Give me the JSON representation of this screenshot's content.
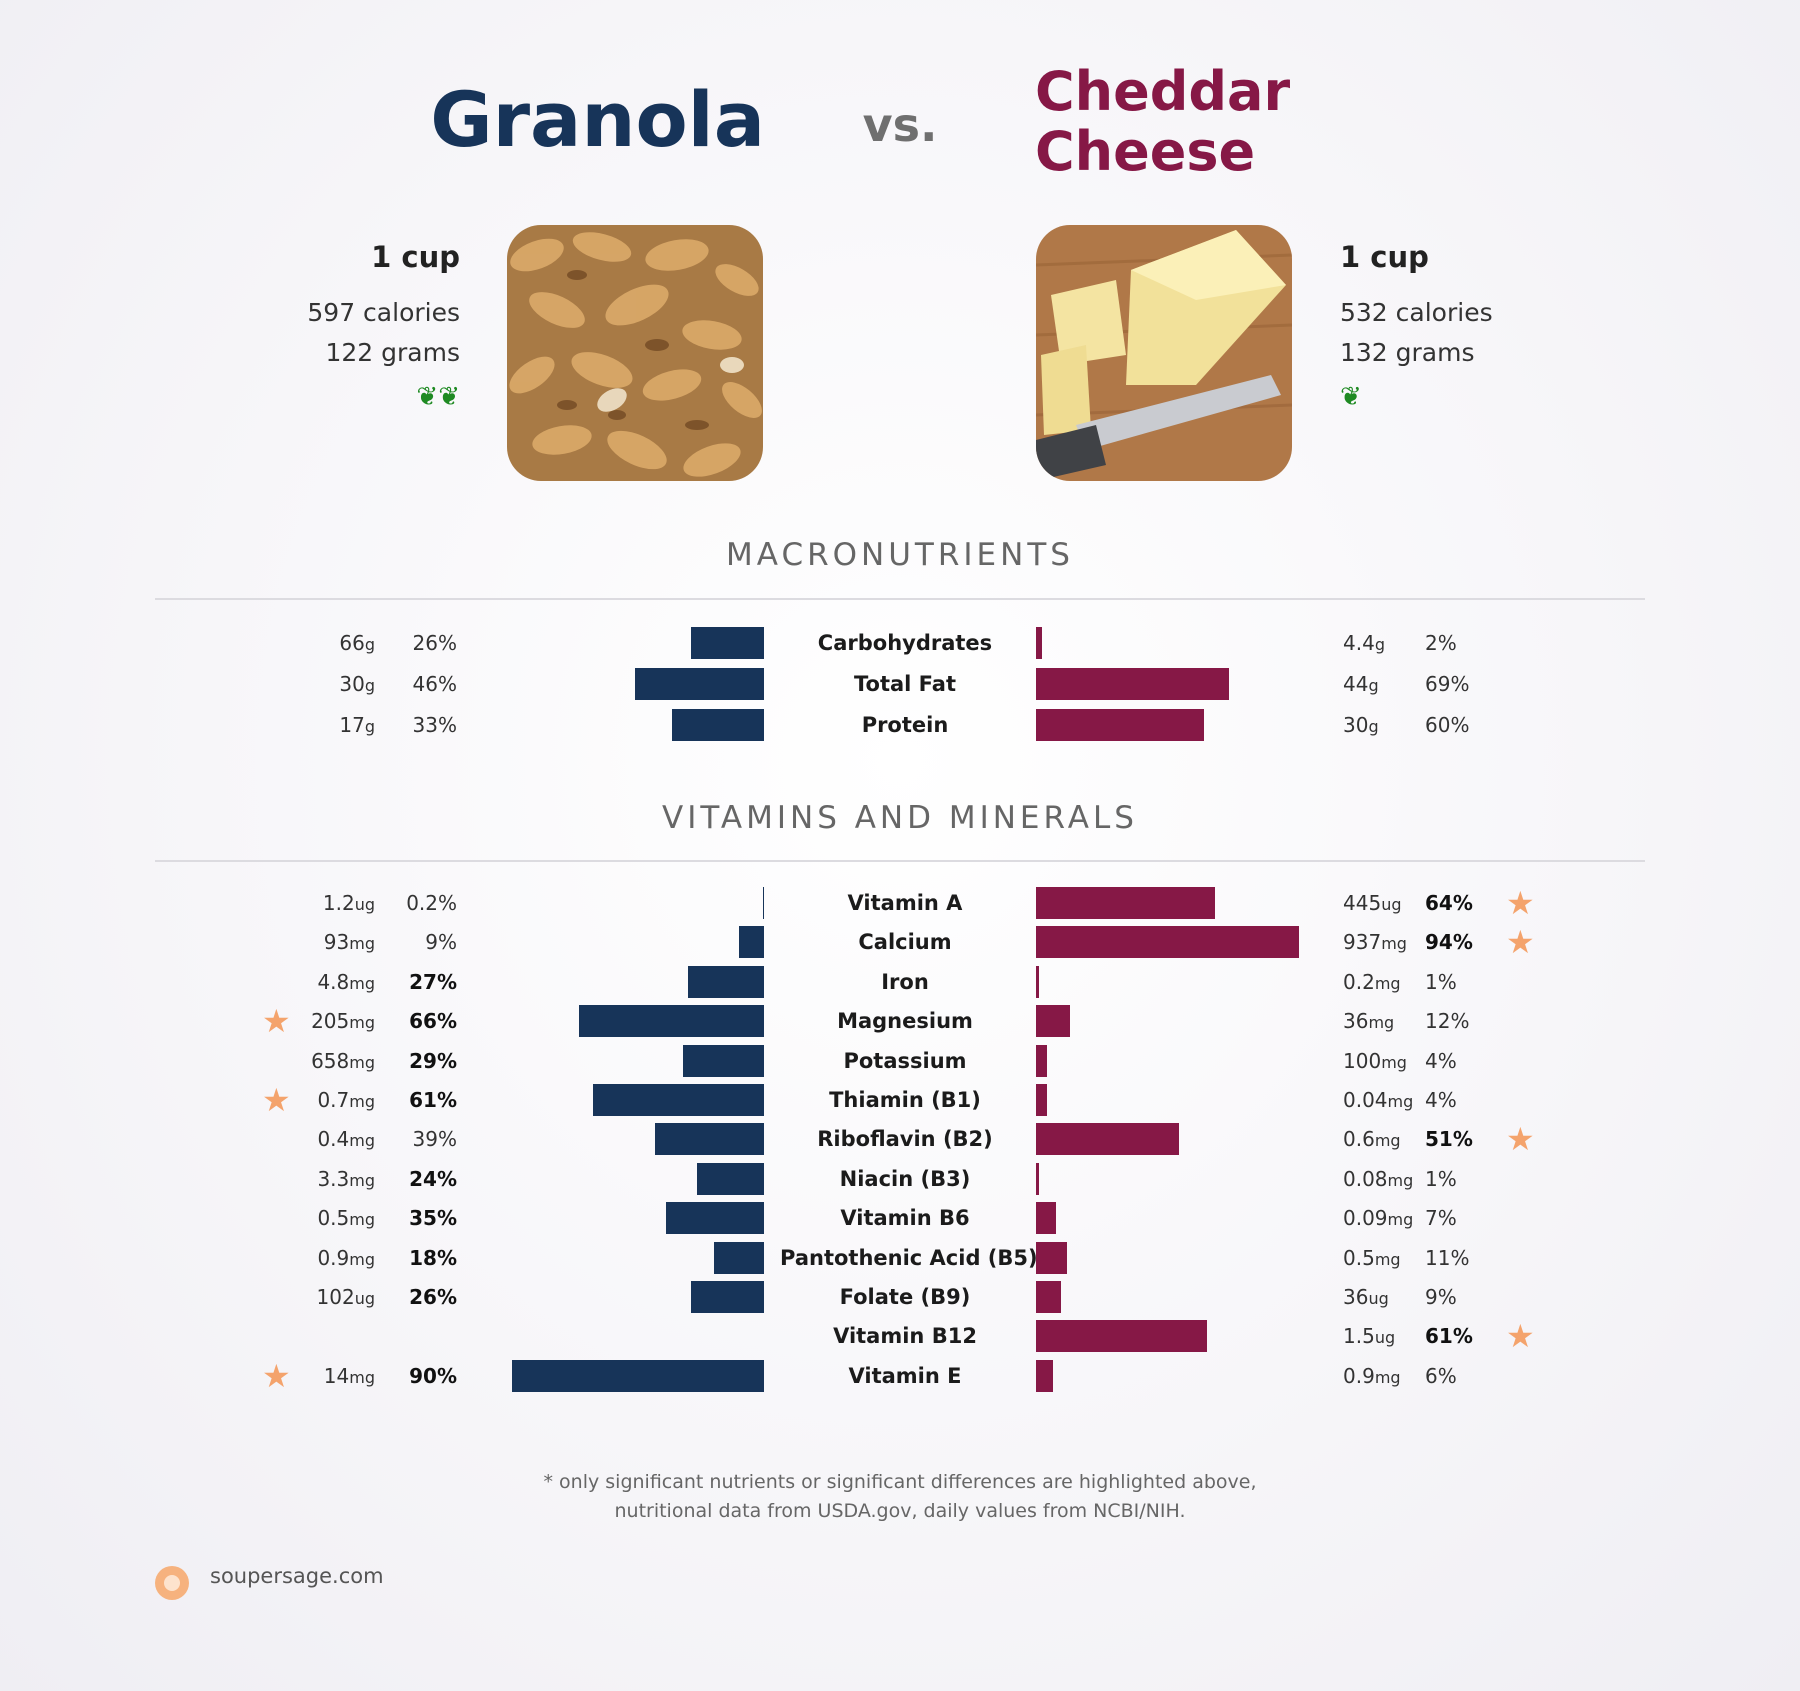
{
  "header": {
    "left_title": "Granola",
    "vs": "vs.",
    "right_title_line1": "Cheddar",
    "right_title_line2": "Cheese"
  },
  "left_food": {
    "serving": "1 cup",
    "calories": "597 calories",
    "grams": "122 grams",
    "sprouts": "❦❦"
  },
  "right_food": {
    "serving": "1 cup",
    "calories": "532 calories",
    "grams": "132 grams",
    "sprouts": "❦"
  },
  "colors": {
    "left": "#173459",
    "right": "#861846",
    "star": "#f4a36c"
  },
  "sections": {
    "macros": "MACRONUTRIENTS",
    "vitamins": "VITAMINS AND MINERALS"
  },
  "chart_data": {
    "type": "bar",
    "macronutrients": [
      {
        "name": "Carbohydrates",
        "left_amount": "66",
        "left_unit": "g",
        "left_pct": 26,
        "left_pct_label": "26%",
        "right_amount": "4.4",
        "right_unit": "g",
        "right_pct": 2,
        "right_pct_label": "2%"
      },
      {
        "name": "Total Fat",
        "left_amount": "30",
        "left_unit": "g",
        "left_pct": 46,
        "left_pct_label": "46%",
        "right_amount": "44",
        "right_unit": "g",
        "right_pct": 69,
        "right_pct_label": "69%"
      },
      {
        "name": "Protein",
        "left_amount": "17",
        "left_unit": "g",
        "left_pct": 33,
        "left_pct_label": "33%",
        "right_amount": "30",
        "right_unit": "g",
        "right_pct": 60,
        "right_pct_label": "60%"
      }
    ],
    "vitamins": [
      {
        "name": "Vitamin A",
        "left_amount": "1.2",
        "left_unit": "ug",
        "left_pct": 0.2,
        "left_pct_label": "0.2%",
        "left_bold": false,
        "left_star": false,
        "right_amount": "445",
        "right_unit": "ug",
        "right_pct": 64,
        "right_pct_label": "64%",
        "right_bold": true,
        "right_star": true
      },
      {
        "name": "Calcium",
        "left_amount": "93",
        "left_unit": "mg",
        "left_pct": 9,
        "left_pct_label": "9%",
        "left_bold": false,
        "left_star": false,
        "right_amount": "937",
        "right_unit": "mg",
        "right_pct": 94,
        "right_pct_label": "94%",
        "right_bold": true,
        "right_star": true
      },
      {
        "name": "Iron",
        "left_amount": "4.8",
        "left_unit": "mg",
        "left_pct": 27,
        "left_pct_label": "27%",
        "left_bold": true,
        "left_star": false,
        "right_amount": "0.2",
        "right_unit": "mg",
        "right_pct": 1,
        "right_pct_label": "1%",
        "right_bold": false,
        "right_star": false
      },
      {
        "name": "Magnesium",
        "left_amount": "205",
        "left_unit": "mg",
        "left_pct": 66,
        "left_pct_label": "66%",
        "left_bold": true,
        "left_star": true,
        "right_amount": "36",
        "right_unit": "mg",
        "right_pct": 12,
        "right_pct_label": "12%",
        "right_bold": false,
        "right_star": false
      },
      {
        "name": "Potassium",
        "left_amount": "658",
        "left_unit": "mg",
        "left_pct": 29,
        "left_pct_label": "29%",
        "left_bold": true,
        "left_star": false,
        "right_amount": "100",
        "right_unit": "mg",
        "right_pct": 4,
        "right_pct_label": "4%",
        "right_bold": false,
        "right_star": false
      },
      {
        "name": "Thiamin (B1)",
        "left_amount": "0.7",
        "left_unit": "mg",
        "left_pct": 61,
        "left_pct_label": "61%",
        "left_bold": true,
        "left_star": true,
        "right_amount": "0.04",
        "right_unit": "mg",
        "right_pct": 4,
        "right_pct_label": "4%",
        "right_bold": false,
        "right_star": false
      },
      {
        "name": "Riboflavin (B2)",
        "left_amount": "0.4",
        "left_unit": "mg",
        "left_pct": 39,
        "left_pct_label": "39%",
        "left_bold": false,
        "left_star": false,
        "right_amount": "0.6",
        "right_unit": "mg",
        "right_pct": 51,
        "right_pct_label": "51%",
        "right_bold": true,
        "right_star": true
      },
      {
        "name": "Niacin (B3)",
        "left_amount": "3.3",
        "left_unit": "mg",
        "left_pct": 24,
        "left_pct_label": "24%",
        "left_bold": true,
        "left_star": false,
        "right_amount": "0.08",
        "right_unit": "mg",
        "right_pct": 1,
        "right_pct_label": "1%",
        "right_bold": false,
        "right_star": false
      },
      {
        "name": "Vitamin B6",
        "left_amount": "0.5",
        "left_unit": "mg",
        "left_pct": 35,
        "left_pct_label": "35%",
        "left_bold": true,
        "left_star": false,
        "right_amount": "0.09",
        "right_unit": "mg",
        "right_pct": 7,
        "right_pct_label": "7%",
        "right_bold": false,
        "right_star": false
      },
      {
        "name": "Pantothenic Acid (B5)",
        "left_amount": "0.9",
        "left_unit": "mg",
        "left_pct": 18,
        "left_pct_label": "18%",
        "left_bold": true,
        "left_star": false,
        "right_amount": "0.5",
        "right_unit": "mg",
        "right_pct": 11,
        "right_pct_label": "11%",
        "right_bold": false,
        "right_star": false
      },
      {
        "name": "Folate (B9)",
        "left_amount": "102",
        "left_unit": "ug",
        "left_pct": 26,
        "left_pct_label": "26%",
        "left_bold": true,
        "left_star": false,
        "right_amount": "36",
        "right_unit": "ug",
        "right_pct": 9,
        "right_pct_label": "9%",
        "right_bold": false,
        "right_star": false
      },
      {
        "name": "Vitamin B12",
        "left_amount": "",
        "left_unit": "",
        "left_pct": 0,
        "left_pct_label": "",
        "left_bold": false,
        "left_star": false,
        "right_amount": "1.5",
        "right_unit": "ug",
        "right_pct": 61,
        "right_pct_label": "61%",
        "right_bold": true,
        "right_star": true
      },
      {
        "name": "Vitamin E",
        "left_amount": "14",
        "left_unit": "mg",
        "left_pct": 90,
        "left_pct_label": "90%",
        "left_bold": true,
        "left_star": true,
        "right_amount": "0.9",
        "right_unit": "mg",
        "right_pct": 6,
        "right_pct_label": "6%",
        "right_bold": false,
        "right_star": false
      }
    ]
  },
  "footnote": {
    "line1": "* only significant nutrients or significant differences are highlighted above,",
    "line2": "nutritional data from USDA.gov, daily values from NCBI/NIH."
  },
  "brand": {
    "text": "soupersage.com"
  }
}
